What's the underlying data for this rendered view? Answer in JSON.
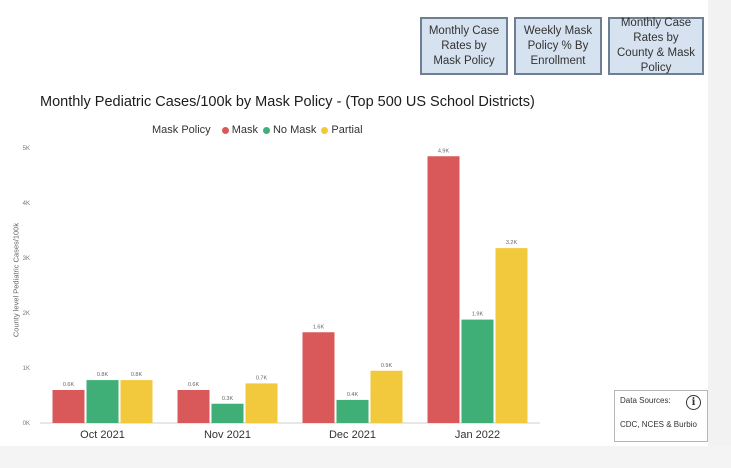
{
  "buttons": [
    {
      "label": "Monthly Case Rates by Mask Policy"
    },
    {
      "label": "Weekly Mask Policy % By Enrollment"
    },
    {
      "label": "Monthly Case Rates by County & Mask Policy"
    }
  ],
  "legend": {
    "title": "Mask Policy",
    "items": [
      {
        "label": "Mask",
        "color": "#d9585a"
      },
      {
        "label": "No Mask",
        "color": "#3fae77"
      },
      {
        "label": "Partial",
        "color": "#f2c93c"
      }
    ]
  },
  "sources": {
    "title": "Data Sources:",
    "text": "CDC, NCES & Burbio",
    "icon": "info-icon",
    "icon_glyph": "i"
  },
  "chart_data": {
    "type": "bar",
    "title": "Monthly Pediatric Cases/100k by Mask Policy - (Top 500 US School Districts)",
    "xlabel": "",
    "ylabel": "County level Pediatric Cases/100k",
    "ylim": [
      0,
      5000
    ],
    "yticks": [
      0,
      1000,
      2000,
      3000,
      4000,
      5000
    ],
    "ytick_labels": [
      "0K",
      "1K",
      "2K",
      "3K",
      "4K",
      "5K"
    ],
    "categories": [
      "Oct 2021",
      "Nov 2021",
      "Dec 2021",
      "Jan 2022"
    ],
    "series": [
      {
        "name": "Mask",
        "color": "#d9585a",
        "values": [
          600,
          600,
          1650,
          4850
        ],
        "labels": [
          "0.6K",
          "0.6K",
          "1.6K",
          "4.9K"
        ]
      },
      {
        "name": "No Mask",
        "color": "#3fae77",
        "values": [
          780,
          350,
          420,
          1880
        ],
        "labels": [
          "0.8K",
          "0.3K",
          "0.4K",
          "1.9K"
        ]
      },
      {
        "name": "Partial",
        "color": "#f2c93c",
        "values": [
          780,
          720,
          950,
          3180
        ],
        "labels": [
          "0.8K",
          "0.7K",
          "0.9K",
          "3.2K"
        ]
      }
    ],
    "grid": false,
    "legend_position": "top-left"
  }
}
